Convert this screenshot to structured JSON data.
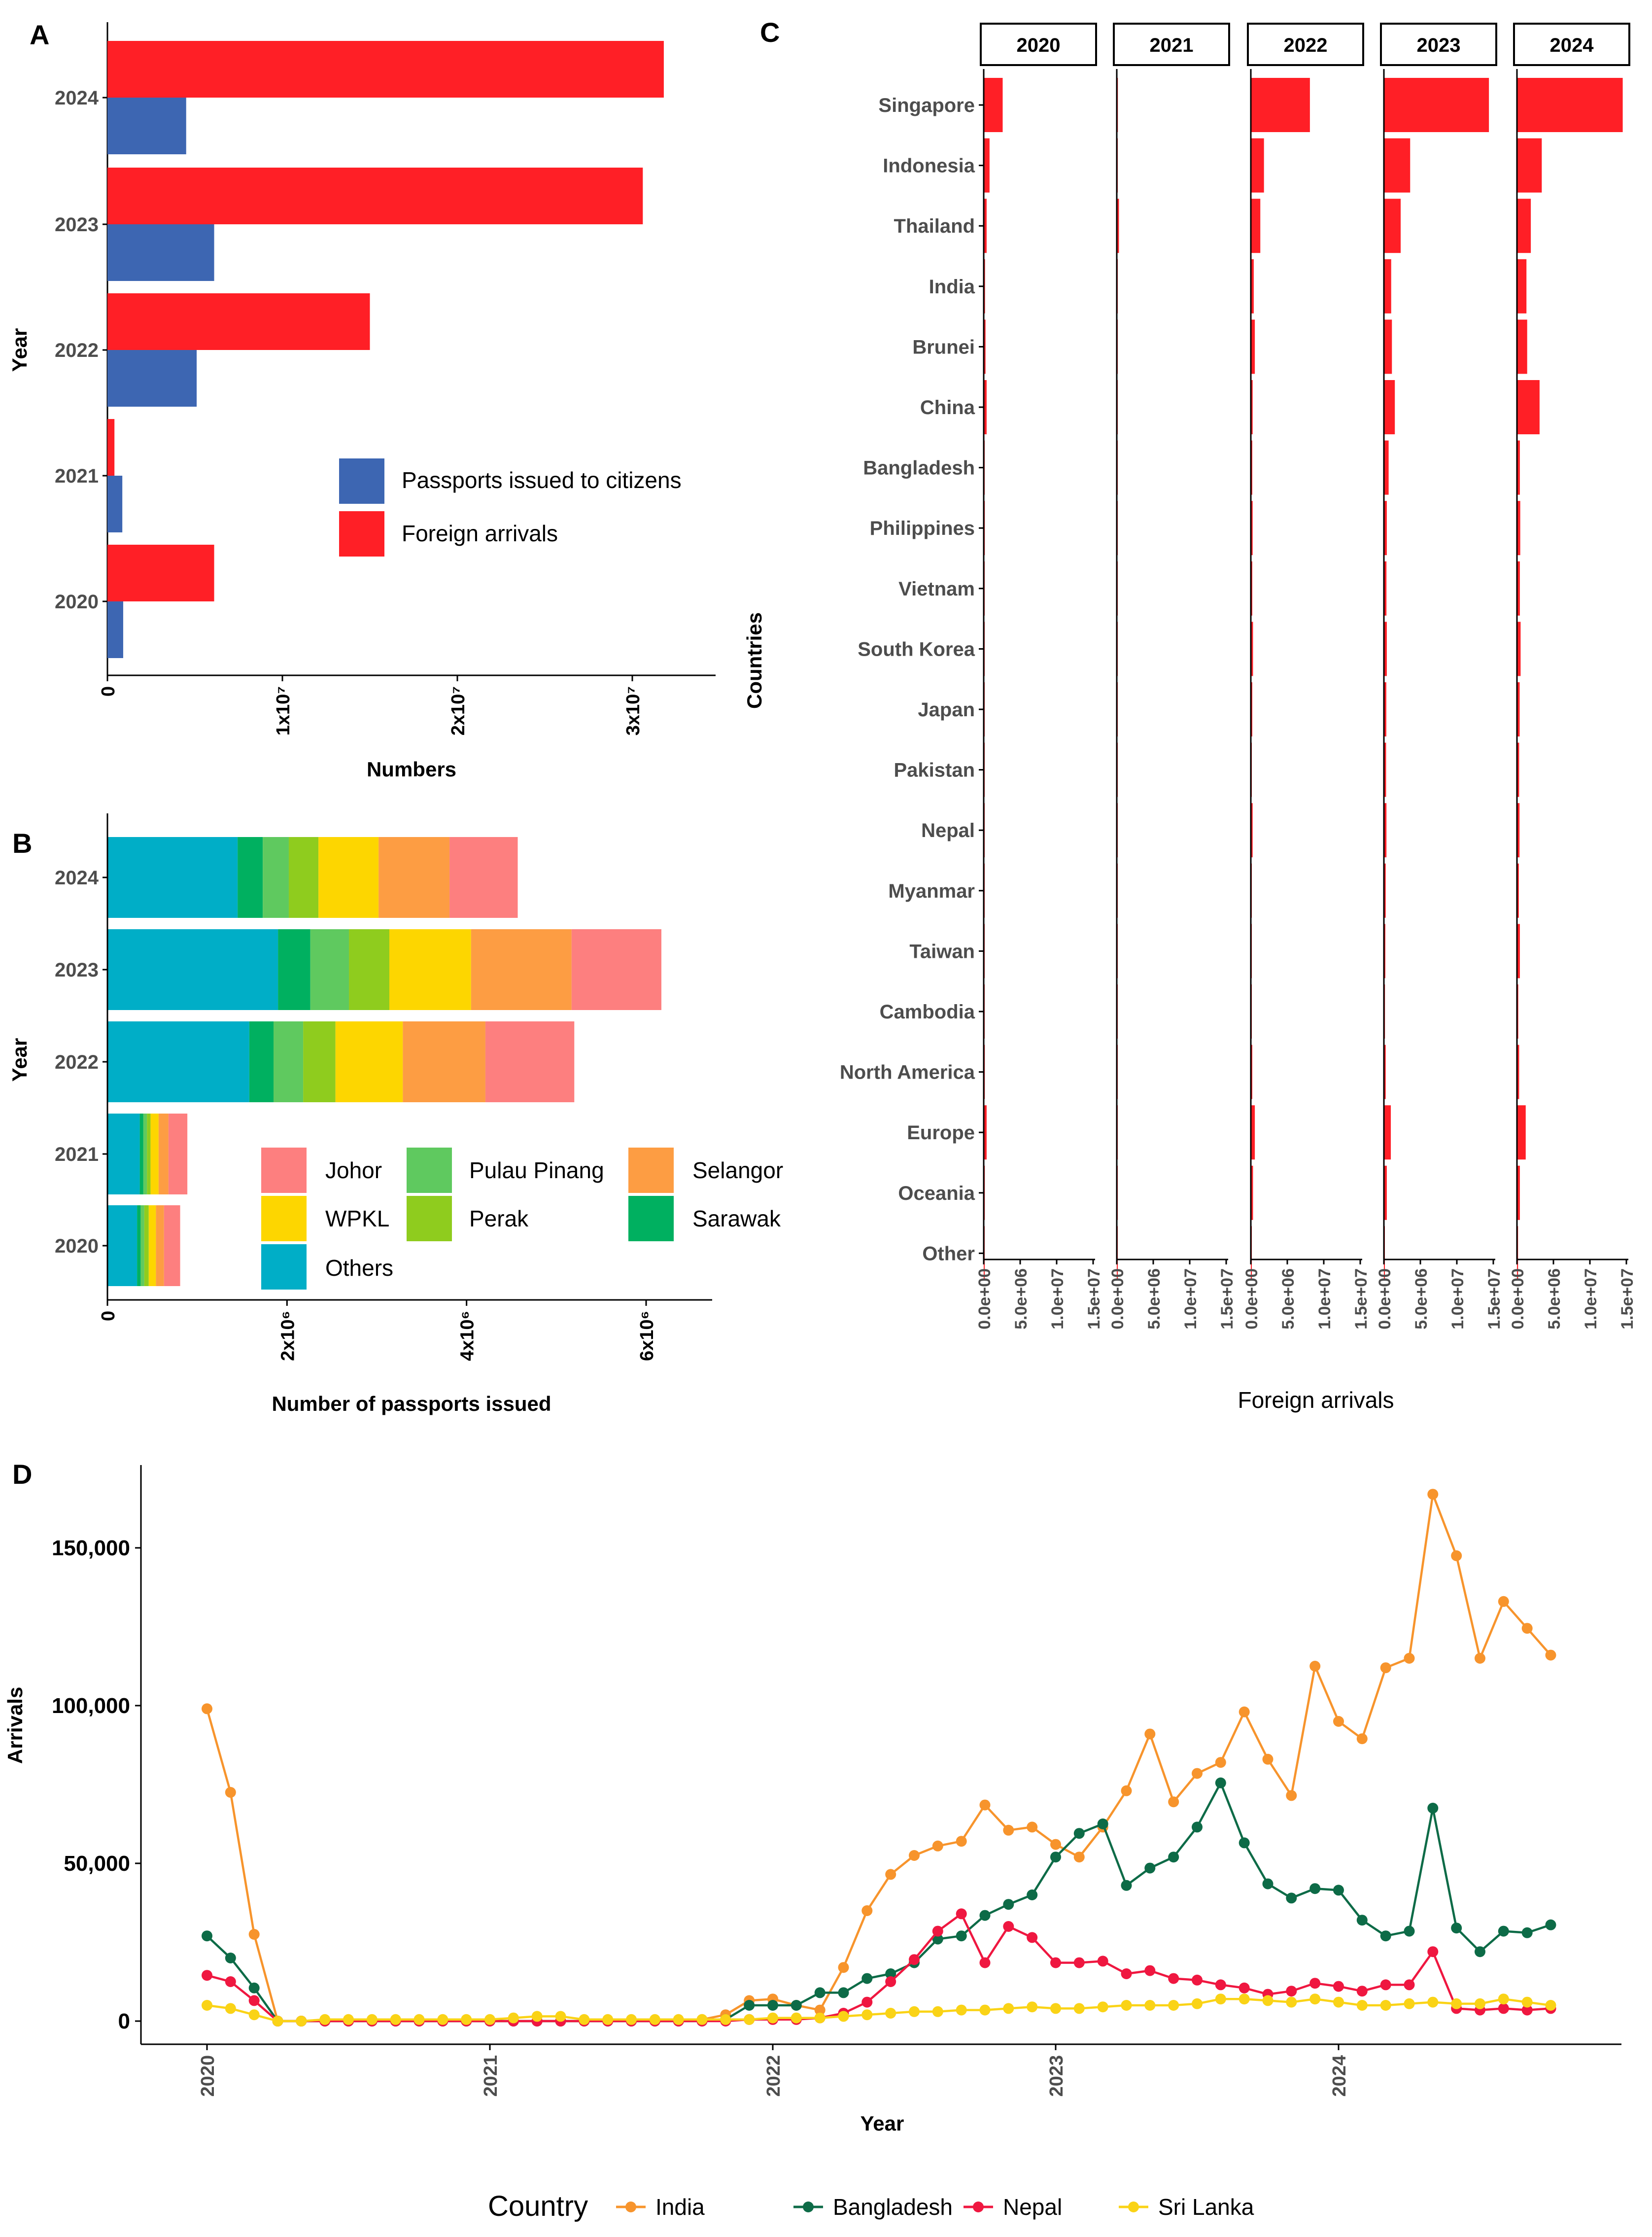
{
  "colors": {
    "red": "#ff1f26",
    "blue": "#3d66b2",
    "india": "#f7942c",
    "bangladesh": "#0d6b47",
    "nepal": "#ef1740",
    "srilanka": "#fad316",
    "johor": "#fd7f7f",
    "pulau_pinang": "#5fc95f",
    "selangor": "#fd9d43",
    "wpkl": "#fdd600",
    "perak": "#8fcc1e",
    "sarawak": "#00b060",
    "others": "#00aec7",
    "axis": "#000000",
    "tick_text": "#4d4d4d"
  },
  "chart_data": [
    {
      "panel": "A",
      "type": "bar",
      "orientation": "horizontal",
      "ylabel": "Year",
      "xlabel": "Numbers",
      "categories": [
        "2020",
        "2021",
        "2022",
        "2023",
        "2024"
      ],
      "xticks": [
        "0",
        "1x10⁷",
        "2x10⁷",
        "3x10⁷"
      ],
      "xtick_values": [
        0,
        10000000,
        20000000,
        30000000
      ],
      "xlim": [
        0,
        35000000
      ],
      "series": [
        {
          "name": "Passports issued to citizens",
          "color_key": "blue",
          "values": [
            900000,
            850000,
            5100000,
            6100000,
            4500000
          ]
        },
        {
          "name": "Foreign arrivals",
          "color_key": "red",
          "values": [
            6100000,
            400000,
            15000000,
            30600000,
            31800000
          ]
        }
      ],
      "legend": [
        "Passports issued to citizens",
        "Foreign arrivals"
      ],
      "legend_position": "bottom-right inside"
    },
    {
      "panel": "B",
      "type": "bar",
      "orientation": "horizontal",
      "stacked": true,
      "ylabel": "Year",
      "xlabel": "Number of passports issued",
      "categories": [
        "2020",
        "2021",
        "2022",
        "2023",
        "2024"
      ],
      "xticks": [
        "0",
        "2x10⁶",
        "4x10⁶",
        "6x10⁶"
      ],
      "xtick_values": [
        0,
        2000000,
        4000000,
        6000000
      ],
      "xlim": [
        0,
        6800000
      ],
      "stack_order": [
        "Others",
        "Sarawak",
        "Pulau Pinang",
        "Perak",
        "WPKL",
        "Selangor",
        "Johor"
      ],
      "series": [
        {
          "name": "Others",
          "color_key": "others",
          "values": [
            330000,
            360000,
            1580000,
            1900000,
            1450000
          ]
        },
        {
          "name": "Sarawak",
          "color_key": "sarawak",
          "values": [
            40000,
            40000,
            270000,
            360000,
            280000
          ]
        },
        {
          "name": "Pulau Pinang",
          "color_key": "pulau_pinang",
          "values": [
            40000,
            40000,
            330000,
            430000,
            290000
          ]
        },
        {
          "name": "Perak",
          "color_key": "perak",
          "values": [
            50000,
            40000,
            360000,
            450000,
            330000
          ]
        },
        {
          "name": "WPKL",
          "color_key": "wpkl",
          "values": [
            80000,
            90000,
            750000,
            910000,
            670000
          ]
        },
        {
          "name": "Selangor",
          "color_key": "selangor",
          "values": [
            90000,
            110000,
            920000,
            1120000,
            790000
          ]
        },
        {
          "name": "Johor",
          "color_key": "johor",
          "values": [
            180000,
            210000,
            990000,
            1000000,
            760000
          ]
        }
      ],
      "legend_rows": [
        [
          "Johor",
          "Pulau Pinang",
          "Selangor"
        ],
        [
          "WPKL",
          "Perak",
          "Sarawak"
        ],
        [
          "Others"
        ]
      ],
      "legend_position": "bottom-right inside"
    },
    {
      "panel": "C",
      "type": "bar",
      "orientation": "horizontal",
      "faceted": true,
      "ylabel": "Countries",
      "xlabel": "Foreign arrivals",
      "facets": [
        "2020",
        "2021",
        "2022",
        "2023",
        "2024"
      ],
      "categories": [
        "Singapore",
        "Indonesia",
        "Thailand",
        "India",
        "Brunei",
        "China",
        "Bangladesh",
        "Philippines",
        "Vietnam",
        "South Korea",
        "Japan",
        "Pakistan",
        "Nepal",
        "Myanmar",
        "Taiwan",
        "Cambodia",
        "North America",
        "Europe",
        "Oceania",
        "Other"
      ],
      "xticks": [
        "0.0e+00",
        "5.0e+06",
        "1.0e+07",
        "1.5e+07"
      ],
      "xtick_values": [
        0,
        5000000,
        10000000,
        15000000
      ],
      "xlim": [
        0,
        15000000
      ],
      "values": {
        "2020": [
          2600000,
          800000,
          400000,
          180000,
          250000,
          400000,
          80000,
          150000,
          120000,
          120000,
          100000,
          50000,
          30000,
          30000,
          80000,
          25000,
          150000,
          400000,
          150000,
          20000
        ],
        "2021": [
          150000,
          40000,
          300000,
          5000,
          8000,
          10000,
          8000,
          6000,
          6000,
          5000,
          4000,
          5000,
          5000,
          4000,
          3000,
          3000,
          5000,
          20000,
          5000,
          3000
        ],
        "2022": [
          8100000,
          1800000,
          1300000,
          400000,
          550000,
          250000,
          200000,
          250000,
          200000,
          300000,
          200000,
          100000,
          250000,
          80000,
          100000,
          80000,
          200000,
          550000,
          300000,
          80000
        ],
        "2023": [
          14400000,
          3600000,
          2300000,
          1000000,
          1100000,
          1500000,
          650000,
          400000,
          350000,
          400000,
          330000,
          300000,
          350000,
          250000,
          200000,
          150000,
          250000,
          950000,
          400000,
          120000
        ],
        "2024": [
          14500000,
          3400000,
          1900000,
          1300000,
          1400000,
          3100000,
          400000,
          450000,
          400000,
          500000,
          370000,
          300000,
          350000,
          260000,
          400000,
          180000,
          300000,
          1200000,
          400000,
          150000
        ]
      }
    },
    {
      "panel": "D",
      "type": "line",
      "xlabel": "Year",
      "ylabel": "Arrivals",
      "xticks": [
        "2020",
        "2021",
        "2022",
        "2023",
        "2024"
      ],
      "xlim": [
        2019.74,
        2024.98
      ],
      "yticks": [
        "0",
        "50,000",
        "100,000",
        "150,000"
      ],
      "ytick_values": [
        0,
        50000,
        100000,
        150000
      ],
      "ylim": [
        -8500,
        175000
      ],
      "x_start": 2020.0,
      "x_step_months": 1,
      "legend_title": "Country",
      "legend_position": "bottom",
      "series": [
        {
          "name": "India",
          "color_key": "india",
          "values": [
            99000,
            72500,
            27500,
            0,
            0,
            0,
            0,
            0,
            0,
            0,
            0,
            0,
            0,
            0,
            0,
            0,
            0,
            0,
            0,
            0,
            0,
            500,
            2000,
            6500,
            7000,
            5000,
            3500,
            17000,
            35000,
            46500,
            52500,
            55500,
            57000,
            68500,
            60500,
            61500,
            56000,
            52000,
            61500,
            73000,
            91000,
            69500,
            78500,
            82000,
            98000,
            83000,
            71500,
            112500,
            95000,
            89500,
            112000,
            115000,
            167000,
            147500,
            115000,
            133000,
            124500,
            116000
          ]
        },
        {
          "name": "Bangladesh",
          "color_key": "bangladesh",
          "values": [
            27000,
            20000,
            10500,
            0,
            0,
            0,
            0,
            0,
            0,
            0,
            0,
            0,
            0,
            0,
            0,
            0,
            0,
            0,
            0,
            0,
            0,
            0,
            500,
            5000,
            5000,
            5000,
            9000,
            9000,
            13500,
            15000,
            18500,
            26000,
            27000,
            33500,
            37000,
            40000,
            52000,
            59500,
            62500,
            43000,
            48500,
            52000,
            61500,
            75500,
            56500,
            43500,
            39000,
            42000,
            41500,
            32000,
            27000,
            28500,
            67500,
            29500,
            22000,
            28500,
            28000,
            30500
          ]
        },
        {
          "name": "Nepal",
          "color_key": "nepal",
          "values": [
            14500,
            12500,
            6500,
            0,
            0,
            0,
            0,
            0,
            0,
            0,
            0,
            0,
            0,
            0,
            0,
            0,
            0,
            0,
            0,
            0,
            0,
            0,
            0,
            500,
            500,
            500,
            1000,
            2500,
            6000,
            12500,
            19500,
            28500,
            34000,
            18500,
            30000,
            26500,
            18500,
            18500,
            19000,
            15000,
            16000,
            13500,
            13000,
            11500,
            10500,
            8500,
            9500,
            12000,
            11000,
            9500,
            11500,
            11500,
            22000,
            4000,
            3500,
            4000,
            3500,
            4000
          ]
        },
        {
          "name": "Sri Lanka",
          "color_key": "srilanka",
          "values": [
            5000,
            4000,
            2000,
            0,
            0,
            500,
            500,
            500,
            500,
            500,
            500,
            500,
            500,
            1000,
            1500,
            1500,
            500,
            500,
            500,
            500,
            500,
            500,
            500,
            500,
            1000,
            1000,
            1000,
            1500,
            2000,
            2500,
            3000,
            3000,
            3500,
            3500,
            4000,
            4500,
            4000,
            4000,
            4500,
            5000,
            5000,
            5000,
            5500,
            7000,
            7000,
            6500,
            6000,
            7000,
            6000,
            5000,
            5000,
            5500,
            6000,
            5500,
            5500,
            7000,
            6000,
            5000
          ]
        }
      ]
    }
  ],
  "panel_labels": {
    "A": "A",
    "B": "B",
    "C": "C",
    "D": "D"
  }
}
